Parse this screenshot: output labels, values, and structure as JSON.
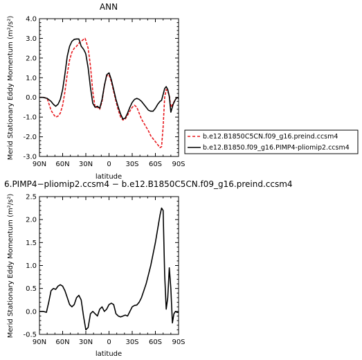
{
  "chart_data": [
    {
      "type": "line",
      "title": "ANN",
      "xlabel": "latitude",
      "ylabel": "Merid Stationary Eddy Momentum (m²/s²)",
      "xlim": [
        90,
        -90
      ],
      "ylim": [
        -3.0,
        4.0
      ],
      "x_ticks": [
        90,
        60,
        30,
        0,
        -30,
        -60,
        -90
      ],
      "x_tick_labels": [
        "90N",
        "60N",
        "30N",
        "0",
        "30S",
        "60S",
        "90S"
      ],
      "y_ticks": [
        -3.0,
        -2.0,
        -1.0,
        0.0,
        1.0,
        2.0,
        3.0,
        4.0
      ],
      "y_tick_labels": [
        "-3.0",
        "-2.0",
        "-1.0",
        "0.0",
        "1.0",
        "2.0",
        "3.0",
        "4.0"
      ],
      "legend_placement": "right",
      "series": [
        {
          "name": "b.e12.B1850C5CN.f09_g16.preind.ccsm4",
          "color": "#e8181d",
          "dash": "dashed",
          "x": [
            90,
            85,
            80,
            75,
            72,
            69,
            66,
            63,
            60,
            57,
            54,
            51,
            48,
            45,
            42,
            39,
            36,
            33,
            31,
            30,
            27,
            24,
            21,
            18,
            15,
            12,
            9,
            6,
            3,
            0,
            -3,
            -6,
            -9,
            -12,
            -15,
            -18,
            -21,
            -24,
            -27,
            -30,
            -33,
            -36,
            -39,
            -42,
            -45,
            -48,
            -51,
            -54,
            -57,
            -60,
            -63,
            -66,
            -68,
            -70,
            -72,
            -74,
            -76,
            -78,
            -80,
            -83,
            -86,
            -88,
            -90
          ],
          "y": [
            0.0,
            0.0,
            -0.05,
            -0.65,
            -0.85,
            -1.0,
            -0.95,
            -0.8,
            -0.4,
            0.3,
            1.2,
            1.9,
            2.3,
            2.5,
            2.6,
            2.75,
            2.85,
            2.95,
            3.0,
            2.9,
            2.5,
            1.6,
            0.3,
            -0.5,
            -0.5,
            -0.6,
            -0.2,
            0.6,
            1.1,
            1.15,
            0.8,
            0.3,
            -0.2,
            -0.65,
            -1.0,
            -1.15,
            -1.1,
            -0.9,
            -0.7,
            -0.5,
            -0.4,
            -0.5,
            -0.8,
            -1.1,
            -1.3,
            -1.5,
            -1.7,
            -1.95,
            -2.1,
            -2.25,
            -2.4,
            -2.55,
            -2.5,
            -1.5,
            0.0,
            0.4,
            0.3,
            0.1,
            -0.5,
            -0.3,
            -0.1,
            0.0,
            -0.05
          ]
        },
        {
          "name": "b.e12.B1850.f09_g16.PIMP4-pliomip2.ccsm4",
          "color": "#000000",
          "dash": "solid",
          "x": [
            90,
            85,
            80,
            75,
            72,
            69,
            66,
            63,
            60,
            57,
            54,
            51,
            48,
            45,
            42,
            39,
            36,
            33,
            31,
            30,
            27,
            24,
            21,
            18,
            15,
            12,
            9,
            6,
            3,
            0,
            -3,
            -6,
            -9,
            -12,
            -15,
            -18,
            -21,
            -24,
            -27,
            -30,
            -33,
            -36,
            -39,
            -42,
            -45,
            -48,
            -51,
            -54,
            -57,
            -60,
            -63,
            -66,
            -68,
            -70,
            -72,
            -74,
            -76,
            -78,
            -80,
            -83,
            -86,
            -88,
            -90
          ],
          "y": [
            0.0,
            0.0,
            -0.05,
            -0.2,
            -0.35,
            -0.45,
            -0.35,
            -0.1,
            0.4,
            1.2,
            2.1,
            2.6,
            2.85,
            2.95,
            2.97,
            2.97,
            2.6,
            2.45,
            2.3,
            2.2,
            1.5,
            0.5,
            -0.3,
            -0.5,
            -0.45,
            -0.55,
            -0.1,
            0.6,
            1.15,
            1.25,
            0.9,
            0.4,
            -0.1,
            -0.5,
            -0.85,
            -1.1,
            -1.05,
            -0.8,
            -0.5,
            -0.25,
            -0.1,
            -0.05,
            -0.1,
            -0.2,
            -0.35,
            -0.5,
            -0.65,
            -0.7,
            -0.7,
            -0.55,
            -0.35,
            -0.2,
            -0.15,
            0.15,
            0.45,
            0.55,
            0.4,
            0.05,
            -0.75,
            -0.35,
            -0.1,
            0.0,
            -0.05
          ]
        }
      ]
    },
    {
      "type": "line",
      "title": "6.PIMP4−pliomip2.ccsm4 − b.e12.B1850C5CN.f09_g16.preind.ccsm4",
      "xlabel": "latitude",
      "ylabel": "Merid Stationary Eddy Momentum (m²/s²)",
      "xlim": [
        90,
        -90
      ],
      "ylim": [
        -0.5,
        2.5
      ],
      "x_ticks": [
        90,
        60,
        30,
        0,
        -30,
        -60,
        -90
      ],
      "x_tick_labels": [
        "90N",
        "60N",
        "30N",
        "0",
        "30S",
        "60S",
        "90S"
      ],
      "y_ticks": [
        -0.5,
        0.0,
        0.5,
        1.0,
        1.5,
        2.0,
        2.5
      ],
      "y_tick_labels": [
        "-0.5",
        "0.0",
        "0.5",
        "1.0",
        "1.5",
        "2.0",
        "2.5"
      ],
      "series": [
        {
          "color": "#000000",
          "dash": "solid",
          "x": [
            90,
            85,
            81,
            78,
            75,
            72,
            69,
            66,
            63,
            60,
            57,
            54,
            51,
            48,
            45,
            42,
            39,
            36,
            33,
            30,
            27,
            24,
            21,
            18,
            15,
            12,
            9,
            6,
            3,
            0,
            -3,
            -6,
            -9,
            -12,
            -15,
            -18,
            -21,
            -24,
            -27,
            -30,
            -33,
            -36,
            -39,
            -42,
            -45,
            -48,
            -51,
            -54,
            -57,
            -60,
            -63,
            -66,
            -68,
            -70,
            -72,
            -74,
            -76,
            -78,
            -80,
            -82,
            -84,
            -86,
            -88,
            -90
          ],
          "y": [
            0.0,
            0.0,
            -0.02,
            0.2,
            0.45,
            0.5,
            0.48,
            0.55,
            0.58,
            0.55,
            0.45,
            0.3,
            0.15,
            0.1,
            0.15,
            0.3,
            0.35,
            0.25,
            -0.1,
            -0.4,
            -0.35,
            -0.05,
            0.0,
            -0.05,
            -0.1,
            0.05,
            0.1,
            0.0,
            0.05,
            0.15,
            0.18,
            0.15,
            -0.05,
            -0.1,
            -0.12,
            -0.1,
            -0.08,
            -0.1,
            0.0,
            0.1,
            0.13,
            0.14,
            0.2,
            0.3,
            0.45,
            0.6,
            0.8,
            1.0,
            1.25,
            1.5,
            1.8,
            2.1,
            2.25,
            2.2,
            0.8,
            0.05,
            0.3,
            0.95,
            0.5,
            -0.25,
            -0.05,
            0.0,
            -0.02,
            -0.02
          ]
        }
      ]
    }
  ]
}
